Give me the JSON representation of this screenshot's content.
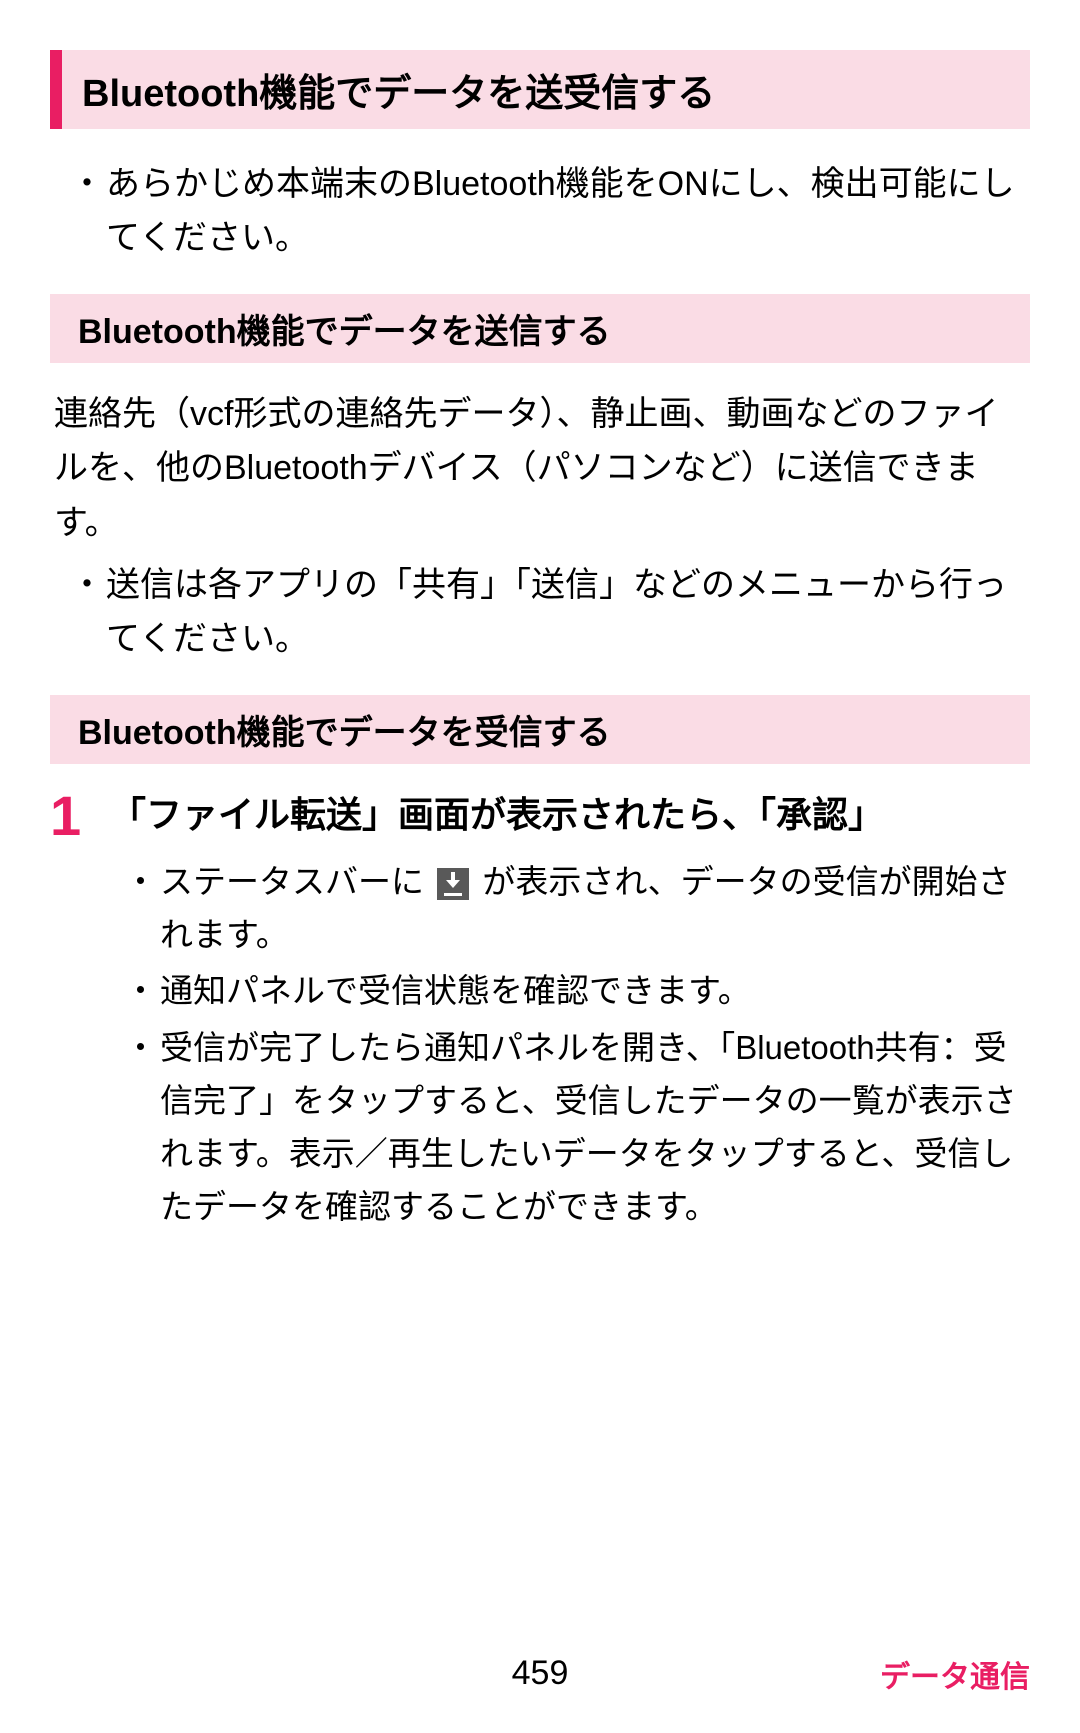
{
  "main_heading": "Bluetooth機能でデータを送受信する",
  "intro_bullet": "あらかじめ本端末のBluetooth機能をONにし、検出可能にしてください。",
  "section1": {
    "heading": "Bluetooth機能でデータを送信する",
    "body": "連絡先（vcf形式の連絡先データ）、静止画、動画などのファイルを、他のBluetoothデバイス（パソコンなど）に送信できます。",
    "bullet": "送信は各アプリの「共有」「送信」などのメニューから行ってください。"
  },
  "section2": {
    "heading": "Bluetooth機能でデータを受信する",
    "step_number": "1",
    "step_text": "「ファイル転送」画面が表示されたら、「承認」",
    "bullets": {
      "b1_before": "ステータスバーに",
      "b1_after": "が表示され、データの受信が開始されます。",
      "b2": "通知パネルで受信状態を確認できます。",
      "b3": "受信が完了したら通知パネルを開き、「Bluetooth共有：受信完了」をタップすると、受信したデータの一覧が表示されます。表示／再生したいデータをタップすると、受信したデータを確認することができます。"
    }
  },
  "footer": {
    "page": "459",
    "section": "データ通信"
  },
  "colors": {
    "accent": "#e91e63",
    "heading_bg": "#fadce5",
    "text": "#000000",
    "icon_bg": "#595959"
  }
}
